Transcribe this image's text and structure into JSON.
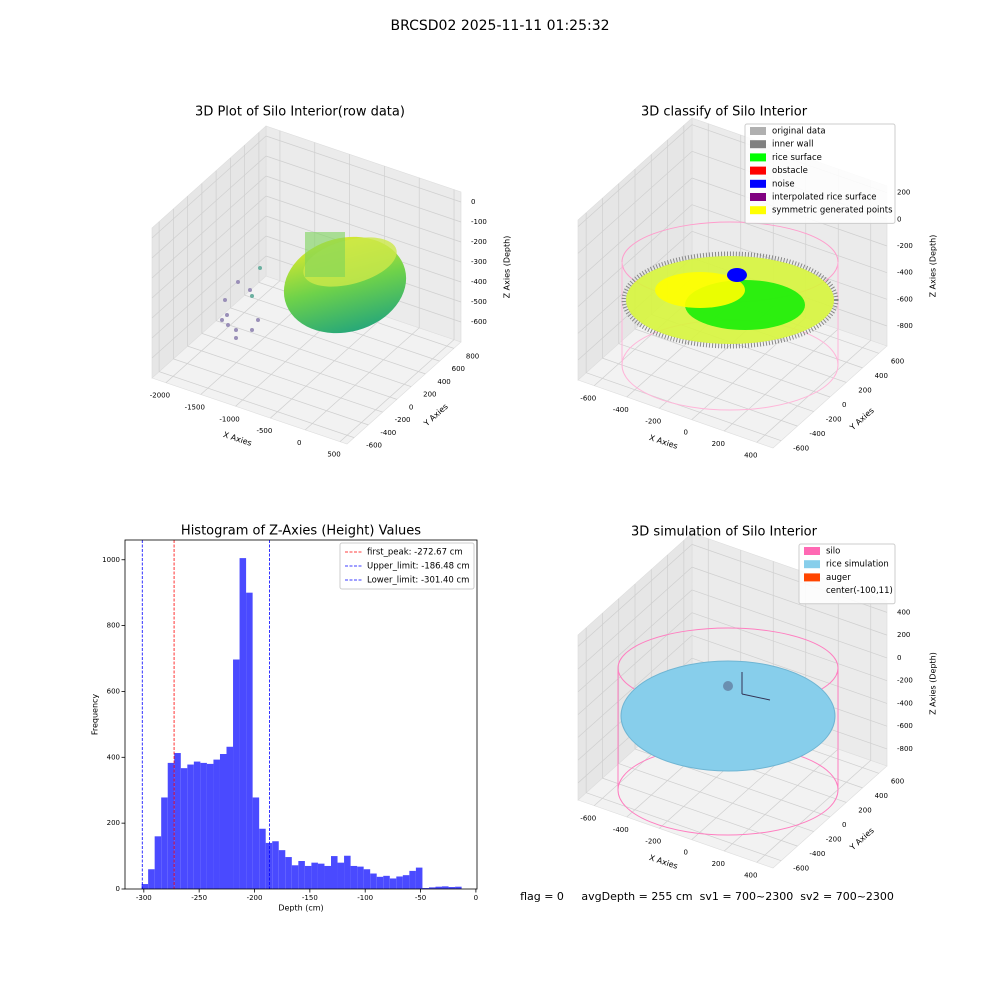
{
  "suptitle": "BRCSD02 2025-11-11 01:25:32",
  "footer": "flag = 0     avgDepth = 255 cm  sv1 = 700~2300  sv2 = 700~2300",
  "chart_data": [
    {
      "type": "scatter3d",
      "title": "3D Plot of Silo Interior(row data)",
      "xlabel": "X Axies",
      "ylabel": "Y Axies",
      "zlabel": "Z Axies (Depth)",
      "xlim": [
        -2200,
        600
      ],
      "ylim": [
        -700,
        900
      ],
      "zlim": [
        -700,
        50
      ],
      "xticks": [
        -2000,
        -1500,
        -1000,
        -500,
        0,
        500
      ],
      "yticks": [
        -600,
        -400,
        -200,
        0,
        200,
        400,
        600,
        800
      ],
      "zticks": [
        -600,
        -500,
        -400,
        -300,
        -200,
        -100,
        0
      ]
    },
    {
      "type": "scatter3d",
      "title": "3D classify of Silo Interior",
      "xlabel": "X Axies",
      "ylabel": "Y Axies",
      "zlabel": "Z Axies (Depth)",
      "xlim": [
        -700,
        500
      ],
      "ylim": [
        -700,
        700
      ],
      "zlim": [
        -950,
        250
      ],
      "xticks": [
        -600,
        -400,
        -200,
        0,
        200,
        400
      ],
      "yticks": [
        -600,
        -400,
        -200,
        0,
        200,
        400,
        600
      ],
      "zticks": [
        -800,
        -600,
        -400,
        -200,
        0,
        200
      ],
      "legend_loc": "upper right",
      "legend": [
        {
          "name": "original data",
          "color": "#b0b0b0"
        },
        {
          "name": "inner wall",
          "color": "#808080"
        },
        {
          "name": "rice surface",
          "color": "#00ff00"
        },
        {
          "name": "obstacle",
          "color": "#ff0000"
        },
        {
          "name": "noise",
          "color": "#0000ff"
        },
        {
          "name": "interpolated rice surface",
          "color": "#800080"
        },
        {
          "name": "symmetric generated points",
          "color": "#ffff00"
        }
      ]
    },
    {
      "type": "histogram",
      "title": "Histogram of Z-Axies (Height) Values",
      "xlabel": "Depth (cm)",
      "ylabel": "Frequency",
      "color": "#4a4aff",
      "bins": [
        -302.0,
        -296.1,
        -290.2,
        -284.3,
        -278.4,
        -272.5,
        -266.6,
        -260.7,
        -254.8,
        -248.9,
        -243.0,
        -237.1,
        -231.2,
        -225.3,
        -219.4,
        -213.5,
        -207.6,
        -201.7,
        -195.8,
        -189.9,
        -184.0,
        -178.1,
        -172.2,
        -166.3,
        -160.4,
        -154.5,
        -148.6,
        -142.7,
        -136.8,
        -130.9,
        -125.0,
        -119.1,
        -113.2,
        -107.3,
        -101.4,
        -95.5,
        -89.6,
        -83.7,
        -77.8,
        -71.9,
        -66.0,
        -60.1,
        -54.2,
        -48.3,
        -42.4,
        -36.5,
        -30.6,
        -24.7,
        -18.8,
        -12.9
      ],
      "counts": [
        15,
        60,
        160,
        278,
        383,
        413,
        367,
        378,
        387,
        383,
        380,
        393,
        410,
        432,
        697,
        1005,
        900,
        278,
        183,
        140,
        145,
        118,
        97,
        72,
        85,
        70,
        80,
        77,
        70,
        100,
        80,
        101,
        70,
        68,
        60,
        47,
        37,
        40,
        32,
        38,
        42,
        55,
        65,
        3,
        5,
        7,
        8,
        6,
        7
      ],
      "xlim": [
        -317,
        1
      ],
      "ylim": [
        0,
        1060
      ],
      "xticks": [
        -300,
        -250,
        -200,
        -150,
        -100,
        -50,
        0
      ],
      "yticks": [
        0,
        200,
        400,
        600,
        800,
        1000
      ],
      "legend_loc": "upper right",
      "vlines": [
        {
          "label": "first_peak: -272.67 cm",
          "value": -272.67,
          "color": "#ff0000"
        },
        {
          "label": "Upper_limit: -186.48 cm",
          "value": -186.48,
          "color": "#0000ff"
        },
        {
          "label": "Lower_limit: -301.40 cm",
          "value": -301.4,
          "color": "#0000ff"
        }
      ]
    },
    {
      "type": "scatter3d",
      "title": "3D simulation of Silo Interior",
      "xlabel": "X Axies",
      "ylabel": "Y Axies",
      "zlabel": "Z Axies (Depth)",
      "xlim": [
        -700,
        500
      ],
      "ylim": [
        -700,
        700
      ],
      "zlim": [
        -950,
        500
      ],
      "xticks": [
        -600,
        -400,
        -200,
        0,
        200,
        400
      ],
      "yticks": [
        -600,
        -400,
        -200,
        0,
        200,
        400,
        600
      ],
      "zticks": [
        -800,
        -600,
        -400,
        -200,
        0,
        200,
        400
      ],
      "legend_loc": "upper right",
      "legend": [
        {
          "name": "silo",
          "color": "#ff69b4"
        },
        {
          "name": "rice simulation",
          "color": "#87ceeb"
        },
        {
          "name": "auger",
          "color": "#ff4500"
        },
        {
          "name": "center(-100,11)"
        }
      ]
    }
  ]
}
